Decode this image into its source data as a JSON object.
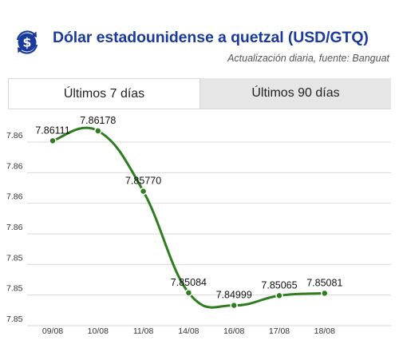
{
  "header": {
    "title": "Dólar estadounidense a quetzal (USD/GTQ)",
    "subtitle": "Actualización diaria, fuente: Banguat",
    "logo_icon": "dollar-exchange-icon"
  },
  "tabs": [
    {
      "label": "Últimos 7 días",
      "active": true
    },
    {
      "label": "Últimos 90 días",
      "active": false
    }
  ],
  "colors": {
    "title": "#1a3a9c",
    "line": "#2e7d1f",
    "tab_inactive": "#e6e6e6"
  },
  "chart_data": {
    "type": "line",
    "categories": [
      "09/08",
      "10/08",
      "11/08",
      "14/08",
      "16/08",
      "17/08",
      "18/08"
    ],
    "values": [
      7.86111,
      7.86178,
      7.8577,
      7.85084,
      7.84999,
      7.85065,
      7.85081
    ],
    "data_labels": [
      "7.86111",
      "7.86178",
      "7.85770",
      "7.85084",
      "7.84999",
      "7.85065",
      "7.85081"
    ],
    "y_ticks": [
      "7.86",
      "7.86",
      "7.86",
      "7.86",
      "7.85",
      "7.85",
      "7.85"
    ],
    "ylim": [
      7.8497,
      7.8621
    ],
    "grid": true,
    "smooth": true
  }
}
